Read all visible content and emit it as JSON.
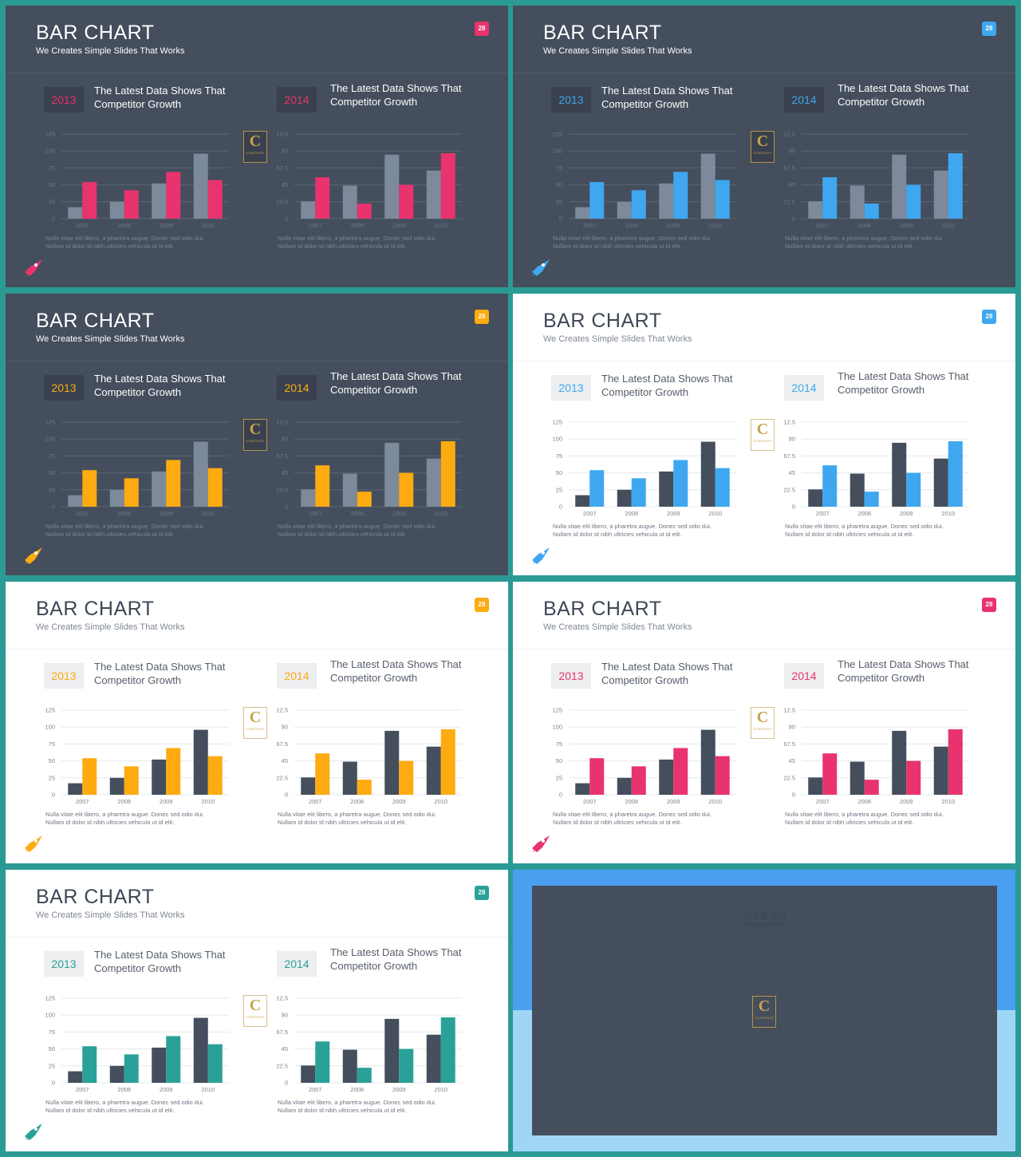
{
  "slides": [
    {
      "theme": "dark",
      "accent": "#e8336e",
      "title": "BAR CHART",
      "subtitle": "We Creates Simple Slides That Works",
      "page_number": "28"
    },
    {
      "theme": "dark",
      "accent": "#3fa7f0",
      "title": "BAR CHART",
      "subtitle": "We Creates Simple Slides That Works",
      "page_number": "28"
    },
    {
      "theme": "dark",
      "accent": "#fdab10",
      "title": "BAR CHART",
      "subtitle": "We Creates Simple Slides That Works",
      "page_number": "28"
    },
    {
      "theme": "light",
      "accent": "#3fa7f0",
      "title": "BAR CHART",
      "subtitle": "We Creates Simple Slides That Works",
      "page_number": "28"
    },
    {
      "theme": "light",
      "accent": "#fdab10",
      "title": "BAR CHART",
      "subtitle": "We Creates Simple Slides That Works",
      "page_number": "28"
    },
    {
      "theme": "light",
      "accent": "#e8336e",
      "title": "BAR CHART",
      "subtitle": "We Creates Simple Slides That Works",
      "page_number": "28"
    },
    {
      "theme": "light",
      "accent": "#2aa198",
      "title": "BAR CHART",
      "subtitle": "We Creates Simple Slides That Works",
      "page_number": "28"
    }
  ],
  "panels": [
    {
      "year": "2013",
      "title_line1": "The Latest Data Shows That",
      "title_line2": "Competitor Growth",
      "description_line1": "Nulla vitae elit libero, a pharetra augue. Donec sed odio dui.",
      "description_line2": "Nullam id dolor id nibh ultricies vehicula ut id elit."
    },
    {
      "year": "2014",
      "title_line1": "The Latest Data Shows That",
      "title_line2": "Competitor Growth",
      "description_line1": "Nulla vitae elit libero, a pharetra augue. Donec sed odio dui.",
      "description_line2": "Nullam id dolor id nibh ultricies vehicula ut id elit."
    }
  ],
  "logo": {
    "letter": "C",
    "text": "CONTENTS"
  },
  "colors": {
    "dark_bg": "#444e5c",
    "light_bg": "#ffffff",
    "dark_neutral_bar": "#7c8a9b",
    "light_neutral_bar": "#444e5c",
    "frame": "#2b9a94"
  },
  "copyright": {
    "title": "저작권 공고",
    "subtitle": "Copyright Notice"
  },
  "chart_data": [
    {
      "type": "bar",
      "categories": [
        "2007",
        "2008",
        "2009",
        "2010"
      ],
      "ylim": [
        0,
        125
      ],
      "yticks": [
        "0",
        "25",
        "50",
        "75",
        "100",
        "125"
      ],
      "series": [
        {
          "values": [
            17,
            25,
            52,
            96
          ]
        },
        {
          "values": [
            54,
            42,
            69,
            57
          ]
        }
      ]
    },
    {
      "type": "bar",
      "categories": [
        "2007",
        "2008",
        "2009",
        "2010"
      ],
      "ylim": [
        0,
        112.5
      ],
      "yticks": [
        "0",
        "22.5",
        "45",
        "67.5",
        "90",
        "112.5"
      ],
      "series": [
        {
          "values": [
            23,
            44,
            85,
            64
          ]
        },
        {
          "values": [
            55,
            20,
            45,
            87
          ]
        }
      ]
    }
  ]
}
